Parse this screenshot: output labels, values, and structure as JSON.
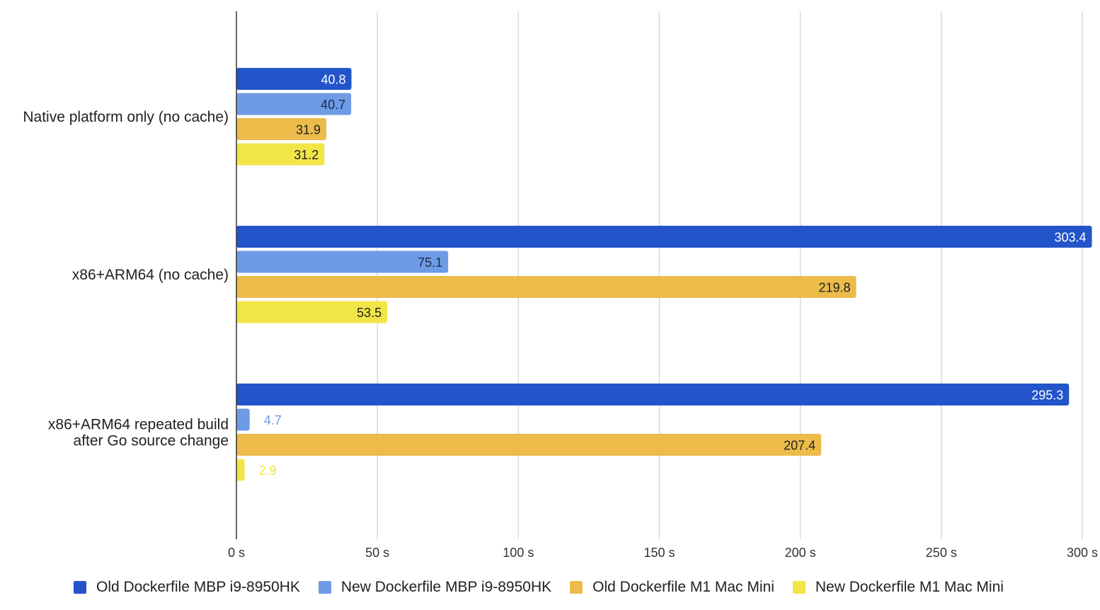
{
  "chart_data": {
    "type": "bar",
    "orientation": "horizontal",
    "title": "",
    "xlabel": "",
    "ylabel": "",
    "xlim": [
      0,
      300
    ],
    "x_ticks": [
      0,
      50,
      100,
      150,
      200,
      250,
      300
    ],
    "x_tick_labels": [
      "0 s",
      "50 s",
      "100 s",
      "150 s",
      "200 s",
      "250 s",
      "300 s"
    ],
    "grid": true,
    "legend_position": "bottom",
    "categories": [
      [
        "Native platform only (no cache)"
      ],
      [
        "x86+ARM64 (no cache)"
      ],
      [
        "x86+ARM64 repeated build",
        "after Go source change"
      ]
    ],
    "series": [
      {
        "name": "Old Dockerfile MBP i9-8950HK",
        "color": "#2354c9",
        "label_color": "#ffffff",
        "values": [
          40.8,
          303.4,
          295.3
        ]
      },
      {
        "name": "New Dockerfile MBP i9-8950HK",
        "color": "#6e9be6",
        "label_color": "#1f2a44",
        "values": [
          40.7,
          75.1,
          4.7
        ]
      },
      {
        "name": "Old Dockerfile M1 Mac Mini",
        "color": "#ecbb4a",
        "label_color": "#222222",
        "values": [
          31.9,
          219.8,
          207.4
        ]
      },
      {
        "name": "New Dockerfile M1 Mac Mini",
        "color": "#f2e547",
        "label_color": "#222222",
        "values": [
          31.2,
          53.5,
          2.9
        ]
      }
    ]
  }
}
